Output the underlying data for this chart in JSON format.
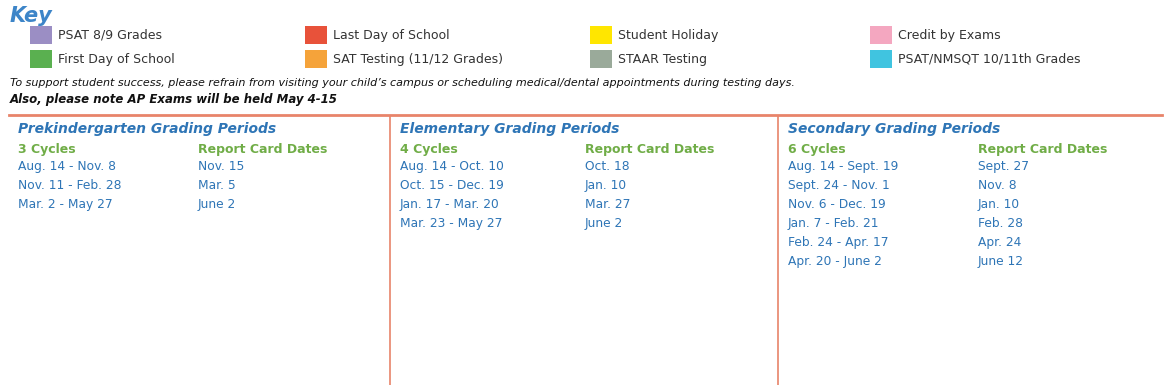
{
  "title": "Key",
  "title_color": "#3d85c8",
  "background_color": "#ffffff",
  "legend_items": [
    {
      "label": "PSAT 8/9 Grades",
      "color": "#9b8ec4",
      "row": 0,
      "col": 0
    },
    {
      "label": "Last Day of School",
      "color": "#e8523a",
      "row": 0,
      "col": 1
    },
    {
      "label": "Student Holiday",
      "color": "#ffe600",
      "row": 0,
      "col": 2
    },
    {
      "label": "Credit by Exams",
      "color": "#f4a7c0",
      "row": 0,
      "col": 3
    },
    {
      "label": "First Day of School",
      "color": "#5ab050",
      "row": 1,
      "col": 0
    },
    {
      "label": "SAT Testing (11/12 Grades)",
      "color": "#f5a33a",
      "row": 1,
      "col": 1
    },
    {
      "label": "STAAR Testing",
      "color": "#9aaa9a",
      "row": 1,
      "col": 2
    },
    {
      "label": "PSAT/NMSQT 10/11th Grades",
      "color": "#40c4e0",
      "row": 1,
      "col": 3
    }
  ],
  "notice_line1": "To support student success, please refrain from visiting your child’s campus or scheduling medical/dental appointments during testing days.",
  "notice_line2": "Also, please note AP Exams will be held May 4-15",
  "divider_color": "#e8846a",
  "section_title_color": "#2e75b6",
  "subheader_color": "#70ad47",
  "data_color": "#2e75b6",
  "fig_width": 11.71,
  "fig_height": 3.85,
  "sections": [
    {
      "title": "Prekindergarten Grading Periods",
      "cycles_label": "3 Cycles",
      "report_label": "Report Card Dates",
      "cycles": [
        "Aug. 14 - Nov. 8",
        "Nov. 11 - Feb. 28",
        "Mar. 2 - May 27"
      ],
      "reports": [
        "Nov. 15",
        "Mar. 5",
        "June 2"
      ]
    },
    {
      "title": "Elementary Grading Periods",
      "cycles_label": "4 Cycles",
      "report_label": "Report Card Dates",
      "cycles": [
        "Aug. 14 - Oct. 10",
        "Oct. 15 - Dec. 19",
        "Jan. 17 - Mar. 20",
        "Mar. 23 - May 27"
      ],
      "reports": [
        "Oct. 18",
        "Jan. 10",
        "Mar. 27",
        "June 2"
      ]
    },
    {
      "title": "Secondary Grading Periods",
      "cycles_label": "6 Cycles",
      "report_label": "Report Card Dates",
      "cycles": [
        "Aug. 14 - Sept. 19",
        "Sept. 24 - Nov. 1",
        "Nov. 6 - Dec. 19",
        "Jan. 7 - Feb. 21",
        "Feb. 24 - Apr. 17",
        "Apr. 20 - June 2"
      ],
      "reports": [
        "Sept. 27",
        "Nov. 8",
        "Jan. 10",
        "Feb. 28",
        "Apr. 24",
        "June 12"
      ]
    }
  ]
}
